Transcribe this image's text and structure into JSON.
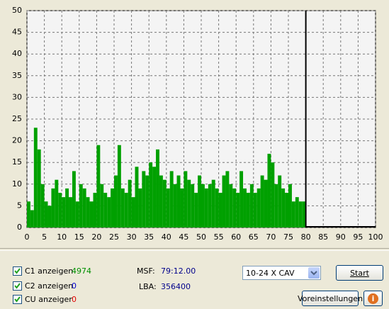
{
  "chart_data": {
    "type": "bar",
    "color": "#00a000",
    "grid": true,
    "xlim": [
      0,
      100
    ],
    "ylim": [
      0,
      50
    ],
    "xticks": [
      0,
      5,
      10,
      15,
      20,
      25,
      30,
      35,
      40,
      45,
      50,
      55,
      60,
      65,
      70,
      75,
      80,
      85,
      90,
      95,
      100
    ],
    "yticks": [
      0,
      5,
      10,
      15,
      20,
      25,
      30,
      35,
      40,
      45,
      50
    ],
    "end_marker": 80,
    "x": [
      0,
      1,
      2,
      3,
      4,
      5,
      6,
      7,
      8,
      9,
      10,
      11,
      12,
      13,
      14,
      15,
      16,
      17,
      18,
      19,
      20,
      21,
      22,
      23,
      24,
      25,
      26,
      27,
      28,
      29,
      30,
      31,
      32,
      33,
      34,
      35,
      36,
      37,
      38,
      39,
      40,
      41,
      42,
      43,
      44,
      45,
      46,
      47,
      48,
      49,
      50,
      51,
      52,
      53,
      54,
      55,
      56,
      57,
      58,
      59,
      60,
      61,
      62,
      63,
      64,
      65,
      66,
      67,
      68,
      69,
      70,
      71,
      72,
      73,
      74,
      75,
      76,
      77,
      78,
      79
    ],
    "values": [
      6,
      4,
      23,
      18,
      10,
      6,
      5,
      9,
      11,
      8,
      7,
      9,
      7,
      13,
      6,
      10,
      9,
      7,
      6,
      8,
      19,
      10,
      8,
      7,
      9,
      12,
      19,
      9,
      8,
      11,
      7,
      14,
      9,
      13,
      12,
      15,
      14,
      18,
      12,
      11,
      9,
      13,
      10,
      12,
      9,
      13,
      11,
      10,
      8,
      12,
      10,
      9,
      10,
      11,
      9,
      8,
      12,
      13,
      10,
      9,
      8,
      13,
      9,
      8,
      10,
      8,
      9,
      12,
      11,
      17,
      15,
      10,
      12,
      9,
      8,
      10,
      6,
      7,
      6,
      6
    ]
  },
  "controls": {
    "c1": {
      "label": "C1 anzeigen",
      "value": "4974"
    },
    "c2": {
      "label": "C2 anzeigen",
      "value": "0"
    },
    "cu": {
      "label": "CU anzeiger",
      "value": "0"
    },
    "msf": {
      "label": "MSF:",
      "value": "79:12.00"
    },
    "lba": {
      "label": "LBA:",
      "value": "356400"
    },
    "speed": "10-24 X CAV",
    "start": "Start",
    "settings": "Voreinstellungen",
    "info": "i"
  }
}
